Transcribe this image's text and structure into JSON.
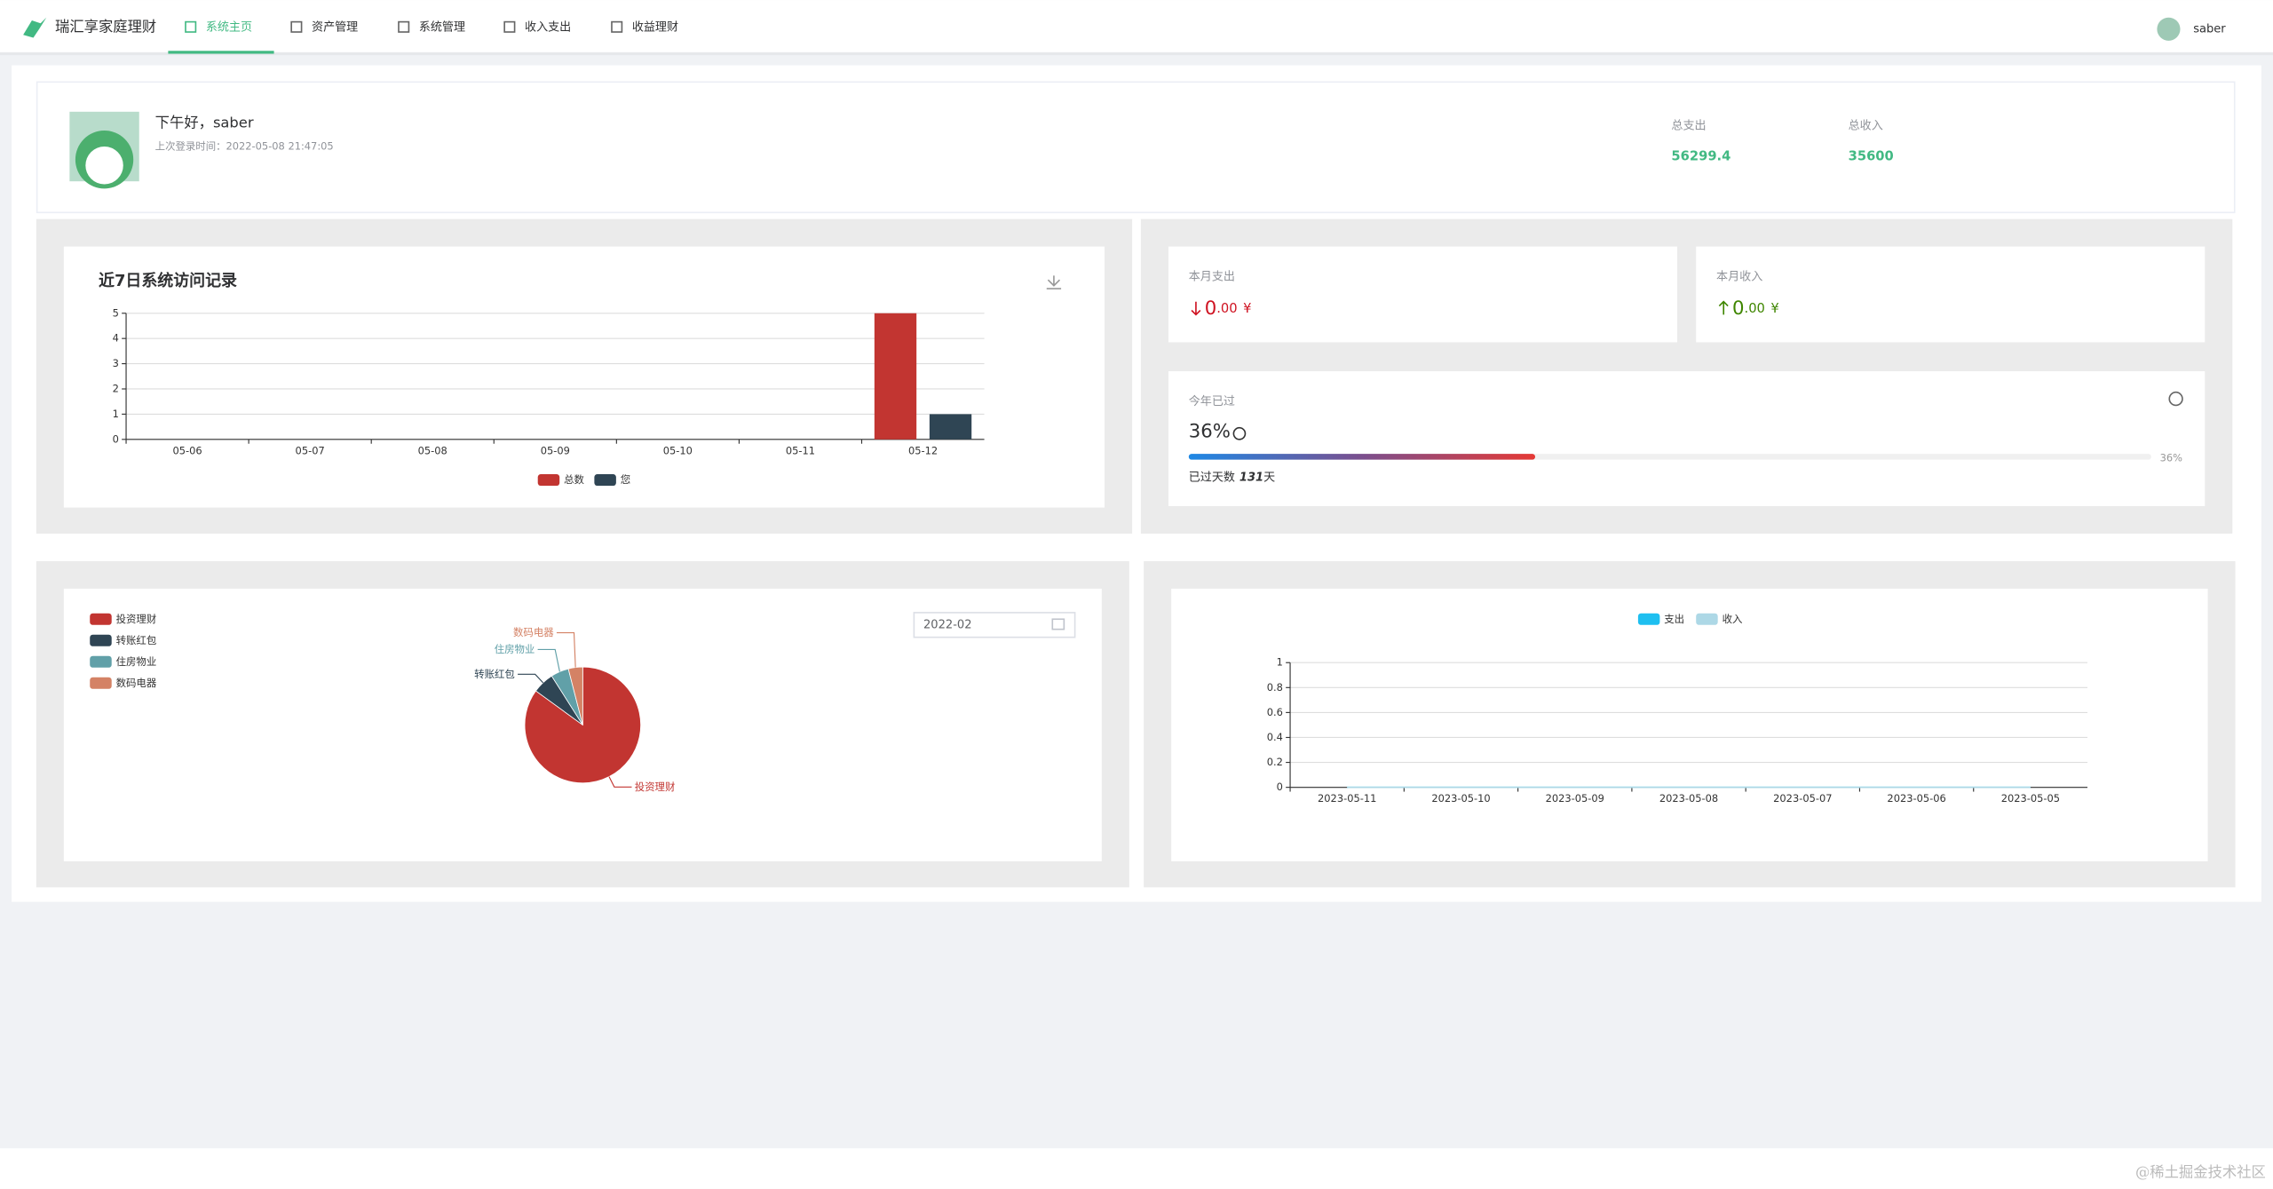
{
  "nav": {
    "brand": "瑞汇享家庭理财",
    "items": [
      "系统主页",
      "资产管理",
      "系统管理",
      "收入支出",
      "收益理财"
    ],
    "user": "saber"
  },
  "welcome": {
    "greeting": "下午好，saber",
    "last_login": "上次登录时间：2022-05-08 21:47:05",
    "stats": [
      {
        "label": "总支出",
        "value": "56299.4"
      },
      {
        "label": "总收入",
        "value": "35600"
      }
    ]
  },
  "month": [
    {
      "label": "本月支出",
      "integer": "0",
      "decimal": ".00",
      "unit": "¥"
    },
    {
      "label": "本月收入",
      "integer": "0",
      "decimal": ".00",
      "unit": "¥"
    }
  ],
  "year": {
    "label": "今年已过",
    "percent_label": "36%",
    "percent": 36,
    "bar_label": "36%",
    "days_label": "已过天数",
    "days": "131",
    "days_unit": "天"
  },
  "date_picker": "2022-02",
  "watermark": "@稀土掘金技术社区",
  "chart_data": [
    {
      "type": "bar",
      "title": "近7日系统访问记录",
      "categories": [
        "05-06",
        "05-07",
        "05-08",
        "05-09",
        "05-10",
        "05-11",
        "05-12"
      ],
      "series": [
        {
          "name": "总数",
          "color": "#c23531",
          "values": [
            0,
            0,
            0,
            0,
            0,
            0,
            5
          ]
        },
        {
          "name": "您",
          "color": "#2f4554",
          "values": [
            0,
            0,
            0,
            0,
            0,
            0,
            1
          ]
        }
      ],
      "ylim": [
        0,
        5
      ],
      "yticks": [
        0,
        1,
        2,
        3,
        4,
        5
      ],
      "grid": true
    },
    {
      "type": "pie",
      "categories": [
        "投资理财",
        "转账红包",
        "住房物业",
        "数码电器"
      ],
      "values": [
        85,
        6,
        5,
        4
      ],
      "colors": [
        "#c23531",
        "#2f4554",
        "#61a0a8",
        "#d48265"
      ]
    },
    {
      "type": "line",
      "categories": [
        "2023-05-11",
        "2023-05-10",
        "2023-05-09",
        "2023-05-08",
        "2023-05-07",
        "2023-05-06",
        "2023-05-05"
      ],
      "series": [
        {
          "name": "支出",
          "color": "#1ebff0",
          "values": [
            0,
            0,
            0,
            0,
            0,
            0,
            0
          ]
        },
        {
          "name": "收入",
          "color": "#add8e6",
          "values": [
            0,
            0,
            0,
            0,
            0,
            0,
            0
          ]
        }
      ],
      "ylim": [
        0,
        1
      ],
      "yticks": [
        0,
        0.2,
        0.4,
        0.6,
        0.8,
        1
      ],
      "grid": true
    }
  ]
}
